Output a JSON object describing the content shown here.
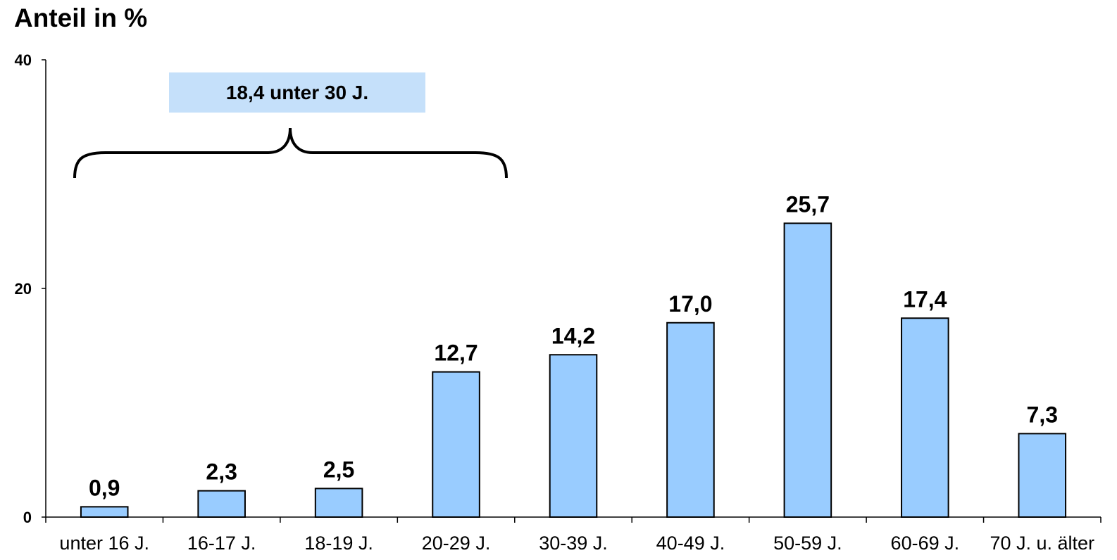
{
  "chart_data": {
    "type": "bar",
    "title": "Anteil in %",
    "xlabel": "",
    "ylabel": "",
    "ylim": [
      0,
      40
    ],
    "yticks": [
      "0",
      "20",
      "40"
    ],
    "grid": false,
    "categories": [
      "unter 16 J.",
      "16-17 J.",
      "18-19 J.",
      "20-29 J.",
      "30-39 J.",
      "40-49 J.",
      "50-59 J.",
      "60-69 J.",
      "70 J. u. älter"
    ],
    "values": [
      0.9,
      2.3,
      2.5,
      12.7,
      14.2,
      17.0,
      25.7,
      17.4,
      7.3
    ],
    "data_labels": [
      "0,9",
      "2,3",
      "2,5",
      "12,7",
      "14,2",
      "17,0",
      "25,7",
      "17,4",
      "7,3"
    ],
    "bar_color": "#99ccff",
    "annotation": {
      "text": "18,4 unter 30 J.",
      "box_color": "#c5e0fa",
      "spans_categories": [
        0,
        3
      ]
    }
  }
}
